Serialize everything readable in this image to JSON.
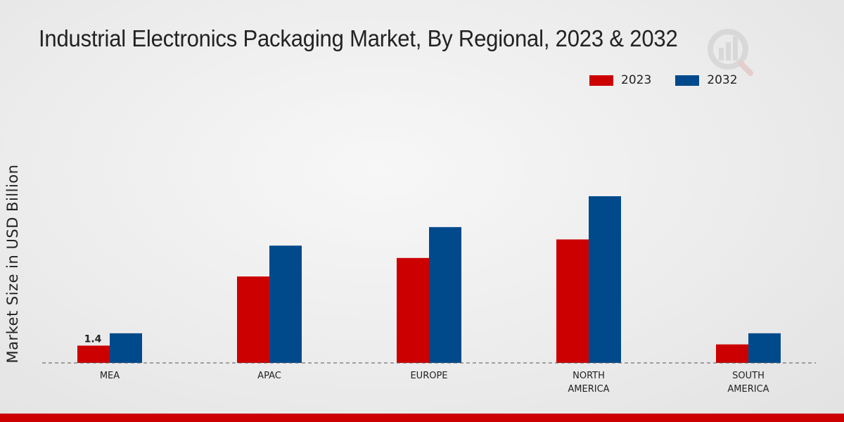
{
  "chart_data": {
    "type": "bar",
    "title": "Industrial Electronics Packaging Market, By Regional, 2023 & 2032",
    "ylabel": "Market Size in USD Billion",
    "xlabel": "",
    "categories": [
      "MEA",
      "APAC",
      "EUROPE",
      "NORTH AMERICA",
      "SOUTH AMERICA"
    ],
    "category_lines": [
      [
        "MEA"
      ],
      [
        "APAC"
      ],
      [
        "EUROPE"
      ],
      [
        "NORTH",
        "AMERICA"
      ],
      [
        "SOUTH",
        "AMERICA"
      ]
    ],
    "series": [
      {
        "name": "2023",
        "color": "#cc0000",
        "values": [
          1.4,
          7.0,
          8.5,
          10.0,
          1.5
        ]
      },
      {
        "name": "2032",
        "color": "#004a8c",
        "values": [
          2.4,
          9.5,
          11.0,
          13.5,
          2.4
        ]
      }
    ],
    "data_labels": [
      {
        "series": 0,
        "index": 0,
        "text": "1.4"
      }
    ],
    "ylim": [
      0,
      18
    ],
    "grid": false,
    "legend_position": "top-right"
  }
}
